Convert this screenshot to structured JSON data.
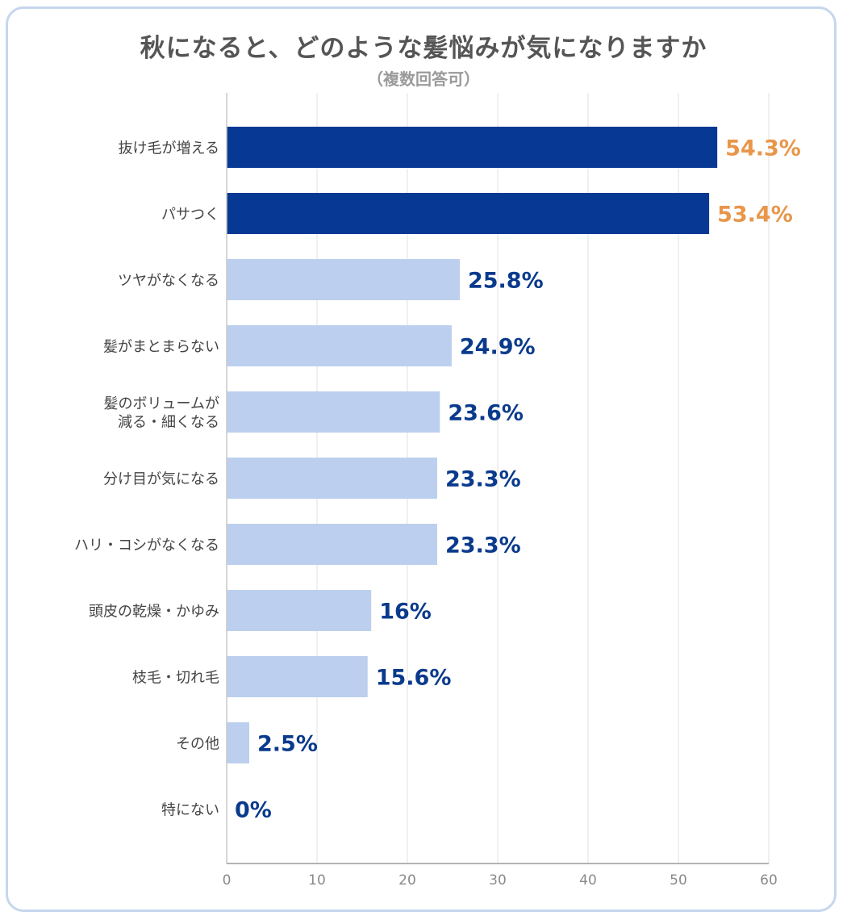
{
  "title": "秋になると、どのような髪悩みが気になりますか",
  "subtitle": "（複数回答可）",
  "colors": {
    "highlight_bar": "#063894",
    "normal_bar": "#bccfee",
    "highlight_label": "#e8964a",
    "normal_label": "#0a3a8c",
    "grid": "#e6e6e6",
    "frame": "#c6d6ee"
  },
  "chart_data": {
    "type": "bar",
    "orientation": "horizontal",
    "categories": [
      [
        "抜け毛が増える"
      ],
      [
        "パサつく"
      ],
      [
        "ツヤがなくなる"
      ],
      [
        "髪がまとまらない"
      ],
      [
        "髪のボリュームが",
        "減る・細くなる"
      ],
      [
        "分け目が気になる"
      ],
      [
        "ハリ・コシがなくなる"
      ],
      [
        "頭皮の乾燥・かゆみ"
      ],
      [
        "枝毛・切れ毛"
      ],
      [
        "その他"
      ],
      [
        "特にない"
      ]
    ],
    "values": [
      54.3,
      53.4,
      25.8,
      24.9,
      23.6,
      23.3,
      23.3,
      16,
      15.6,
      2.5,
      0
    ],
    "value_labels": [
      "54.3%",
      "53.4%",
      "25.8%",
      "24.9%",
      "23.6%",
      "23.3%",
      "23.3%",
      "16%",
      "15.6%",
      "2.5%",
      "0%"
    ],
    "highlighted": [
      true,
      true,
      false,
      false,
      false,
      false,
      false,
      false,
      false,
      false,
      false
    ],
    "xlim": [
      0,
      60
    ],
    "xticks": [
      0,
      10,
      20,
      30,
      40,
      50,
      60
    ],
    "xtick_labels": [
      "0",
      "10",
      "20",
      "30",
      "40",
      "50",
      "60"
    ],
    "grid": "vertical",
    "legend": "none"
  }
}
